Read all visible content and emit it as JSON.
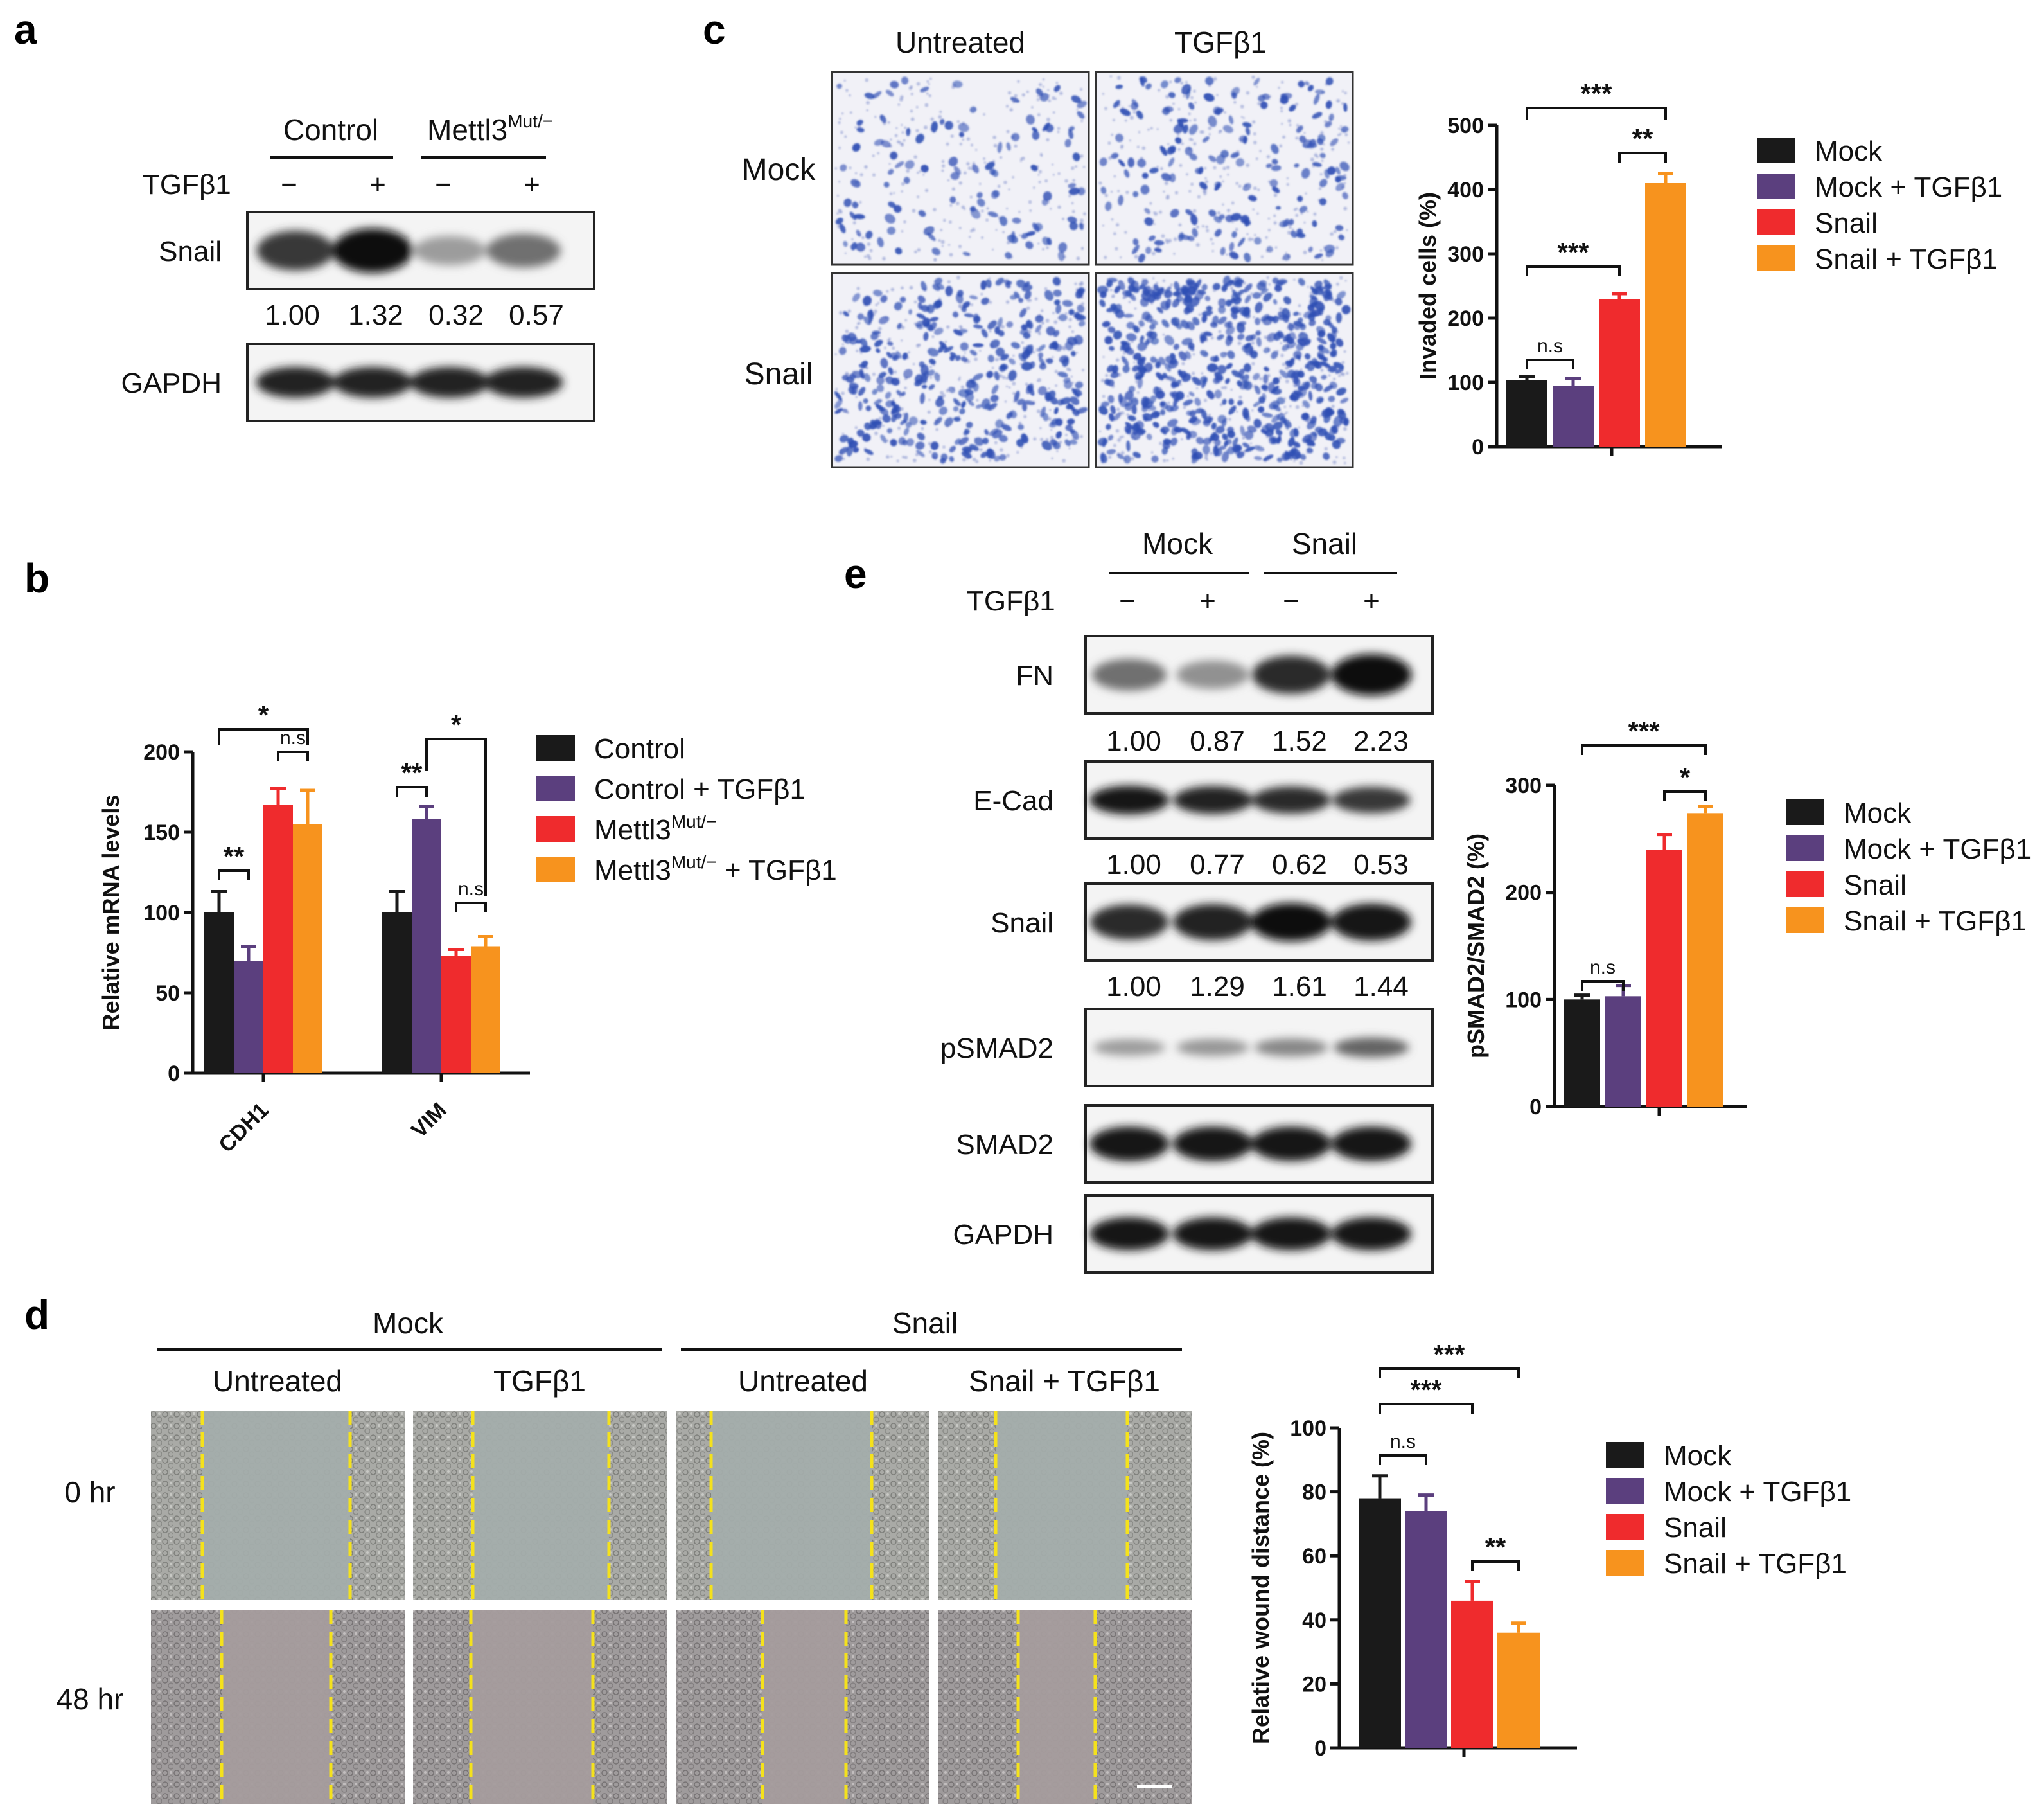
{
  "panels": {
    "a": {
      "letter": "a",
      "group_labels": [
        "Control",
        "Mettl3"
      ],
      "group_sup": "Mut/−",
      "treatment_label": "TGFβ1",
      "treatment_signs": [
        "−",
        "+",
        "−",
        "+"
      ],
      "blots": [
        {
          "label": "Snail",
          "intensities": [
            0.8,
            1.0,
            0.35,
            0.55
          ]
        },
        {
          "label": "GAPDH",
          "intensities": [
            0.9,
            0.9,
            0.9,
            0.9
          ]
        }
      ],
      "quant": [
        "1.00",
        "1.32",
        "0.32",
        "0.57"
      ]
    },
    "b": {
      "letter": "b",
      "xlabel_unused": "",
      "sig_labels": [
        "*",
        "n.s",
        "**",
        "**",
        "*",
        "n.s"
      ]
    },
    "c": {
      "letter": "c",
      "col_labels": [
        "Untreated",
        "TGFβ1"
      ],
      "row_labels": [
        "Mock",
        "Snail"
      ],
      "sig_labels": [
        "***",
        "**",
        "***",
        "n.s"
      ]
    },
    "d": {
      "letter": "d",
      "group_labels": [
        "Mock",
        "Snail"
      ],
      "col_labels": [
        "Untreated",
        "TGFβ1",
        "Untreated",
        "Snail + TGFβ1"
      ],
      "row_labels": [
        "0 hr",
        "48 hr"
      ],
      "sig_labels": [
        "***",
        "***",
        "n.s",
        "**"
      ]
    },
    "e": {
      "letter": "e",
      "group_labels": [
        "Mock",
        "Snail"
      ],
      "treatment_label": "TGFβ1",
      "treatment_signs": [
        "−",
        "+",
        "−",
        "+"
      ],
      "blots": [
        {
          "label": "FN",
          "quant": [
            "1.00",
            "0.87",
            "1.52",
            "2.23"
          ]
        },
        {
          "label": "E-Cad",
          "quant": [
            "1.00",
            "0.77",
            "0.62",
            "0.53"
          ]
        },
        {
          "label": "Snail",
          "quant": [
            "1.00",
            "1.29",
            "1.61",
            "1.44"
          ]
        },
        {
          "label": "pSMAD2",
          "quant": []
        },
        {
          "label": "SMAD2",
          "quant": []
        },
        {
          "label": "GAPDH",
          "quant": []
        }
      ],
      "sig_labels": [
        "***",
        "*",
        "n.s"
      ]
    }
  },
  "colors": {
    "black": "#1a1a1a",
    "purple": "#5b3f7e",
    "red": "#ef2b2d",
    "orange": "#f7931e",
    "stain": "#2f4fb4",
    "wound_line": "#f5e21b"
  },
  "chart_data": [
    {
      "id": "b",
      "type": "bar",
      "categories": [
        "CDH1",
        "VIM"
      ],
      "series": [
        {
          "name": "Control",
          "values": [
            100,
            100
          ],
          "errors": [
            13,
            13
          ]
        },
        {
          "name": "Control + TGFβ1",
          "values": [
            70,
            158
          ],
          "errors": [
            9,
            8
          ]
        },
        {
          "name": "Mettl3Mut/−",
          "values": [
            167,
            73
          ],
          "errors": [
            10,
            4
          ]
        },
        {
          "name": "Mettl3Mut/− + TGFβ1",
          "values": [
            155,
            79
          ],
          "errors": [
            21,
            6
          ]
        }
      ],
      "legend_sup": "Mut/−",
      "xlabel": "",
      "ylabel": "Relative mRNA levels",
      "ylim": [
        0,
        200
      ],
      "yticks": [
        0,
        50,
        100,
        150,
        200
      ],
      "legend": "right"
    },
    {
      "id": "c",
      "type": "bar",
      "categories": [
        ""
      ],
      "series": [
        {
          "name": "Mock",
          "values": [
            103
          ],
          "errors": [
            6
          ]
        },
        {
          "name": "Mock + TGFβ1",
          "values": [
            95
          ],
          "errors": [
            11
          ]
        },
        {
          "name": "Snail",
          "values": [
            230
          ],
          "errors": [
            8
          ]
        },
        {
          "name": "Snail + TGFβ1",
          "values": [
            410
          ],
          "errors": [
            15
          ]
        }
      ],
      "ylabel": "Invaded cells (%)",
      "ylim": [
        0,
        500
      ],
      "yticks": [
        0,
        100,
        200,
        300,
        400,
        500
      ],
      "legend": "right"
    },
    {
      "id": "e",
      "type": "bar",
      "categories": [
        ""
      ],
      "series": [
        {
          "name": "Mock",
          "values": [
            100
          ],
          "errors": [
            4
          ]
        },
        {
          "name": "Mock + TGFβ1",
          "values": [
            103
          ],
          "errors": [
            10
          ]
        },
        {
          "name": "Snail",
          "values": [
            240
          ],
          "errors": [
            14
          ]
        },
        {
          "name": "Snail + TGFβ1",
          "values": [
            274
          ],
          "errors": [
            6
          ]
        }
      ],
      "ylabel": "pSMAD2/SMAD2 (%)",
      "ylim": [
        0,
        300
      ],
      "yticks": [
        0,
        100,
        200,
        300
      ],
      "legend": "right"
    },
    {
      "id": "d",
      "type": "bar",
      "categories": [
        ""
      ],
      "series": [
        {
          "name": "Mock",
          "values": [
            78
          ],
          "errors": [
            7
          ]
        },
        {
          "name": "Mock + TGFβ1",
          "values": [
            74
          ],
          "errors": [
            5
          ]
        },
        {
          "name": "Snail",
          "values": [
            46
          ],
          "errors": [
            6
          ]
        },
        {
          "name": "Snail + TGFβ1",
          "values": [
            36
          ],
          "errors": [
            3
          ]
        }
      ],
      "ylabel": "Relative wound distance (%)",
      "ylim": [
        0,
        100
      ],
      "yticks": [
        0,
        20,
        40,
        60,
        80,
        100
      ],
      "legend": "right"
    }
  ]
}
